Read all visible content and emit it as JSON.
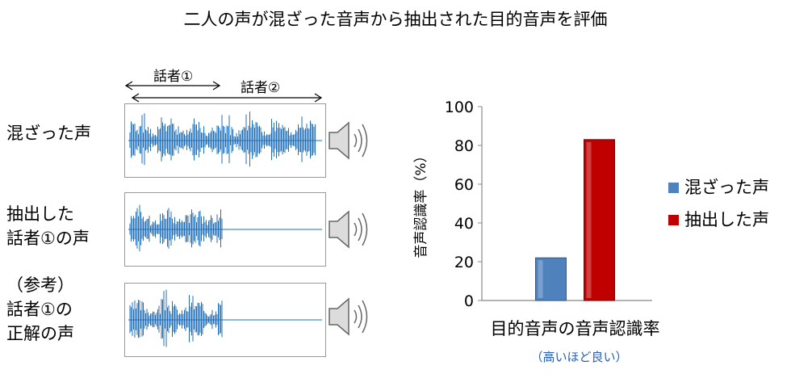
{
  "title": "二人の声が混ざった音声から抽出された目的音声を評価",
  "left_panel": {
    "speaker1_label": "話者①",
    "speaker2_label": "話者②",
    "rows": [
      {
        "label_lines": [
          "混ざった声"
        ]
      },
      {
        "label_lines": [
          "抽出した",
          "話者①の声"
        ]
      },
      {
        "label_lines": [
          "（参考）",
          "話者①の",
          "正解の声"
        ]
      }
    ],
    "speaker_icon": "speaker-sound-icon",
    "wave_color": "#1f6fb8"
  },
  "chart_data": {
    "type": "bar",
    "categories": [
      "目的音声の音声認識率"
    ],
    "series": [
      {
        "name": "混ざった声",
        "values": [
          22
        ],
        "color": "#4f81bd"
      },
      {
        "name": "抽出した声",
        "values": [
          83
        ],
        "color": "#c00000"
      }
    ],
    "ylabel": "音声認識率（%）",
    "xlabel": "目的音声の音声認識率",
    "ylim": [
      0,
      100
    ],
    "yticks": [
      "0",
      "20",
      "40",
      "60",
      "80",
      "100"
    ],
    "legend_position": "right",
    "grid": false
  },
  "note": "（高いほど良い）"
}
